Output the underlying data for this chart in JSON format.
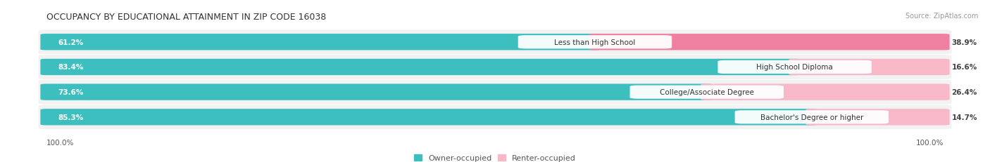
{
  "title": "OCCUPANCY BY EDUCATIONAL ATTAINMENT IN ZIP CODE 16038",
  "source": "Source: ZipAtlas.com",
  "categories": [
    "Less than High School",
    "High School Diploma",
    "College/Associate Degree",
    "Bachelor's Degree or higher"
  ],
  "owner_values": [
    61.2,
    83.4,
    73.6,
    85.3
  ],
  "renter_values": [
    38.9,
    16.6,
    26.4,
    14.7
  ],
  "owner_color": "#3DBFBF",
  "renter_color": "#F080A0",
  "renter_color_light": "#F8B8C8",
  "bar_bg_color": "#EFEFEF",
  "title_fontsize": 9,
  "label_fontsize": 7.5,
  "value_fontsize": 7.5,
  "legend_fontsize": 8,
  "source_fontsize": 7,
  "axis_label_color": "#555555",
  "title_color": "#333333",
  "label_color": "#333333"
}
